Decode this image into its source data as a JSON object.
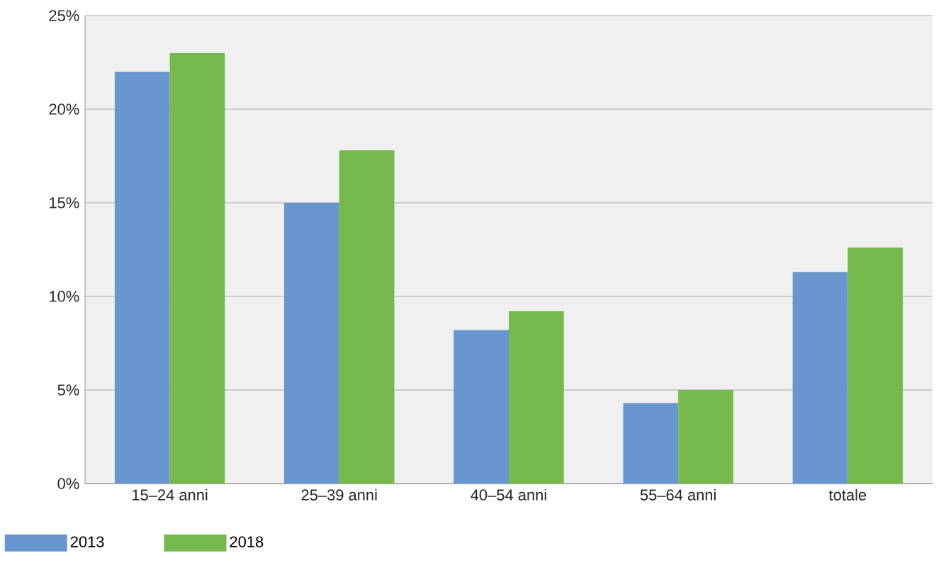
{
  "chart_data": {
    "type": "bar",
    "categories": [
      "15–24 anni",
      "25–39 anni",
      "40–54 anni",
      "55–64 anni",
      "totale"
    ],
    "series": [
      {
        "name": "2013",
        "color": "#6a96d0",
        "values": [
          22.0,
          15.0,
          8.2,
          4.3,
          11.3
        ]
      },
      {
        "name": "2018",
        "color": "#76b94c",
        "values": [
          23.0,
          17.8,
          9.2,
          5.0,
          12.6
        ]
      }
    ],
    "ylim": [
      0,
      25
    ],
    "yticks": [
      {
        "value": 0,
        "label": "0%"
      },
      {
        "value": 5,
        "label": "5%"
      },
      {
        "value": 10,
        "label": "10%"
      },
      {
        "value": 15,
        "label": "15%"
      },
      {
        "value": 20,
        "label": "20%"
      },
      {
        "value": 25,
        "label": "25%"
      }
    ],
    "grid": "y",
    "legend": "bottom left"
  }
}
